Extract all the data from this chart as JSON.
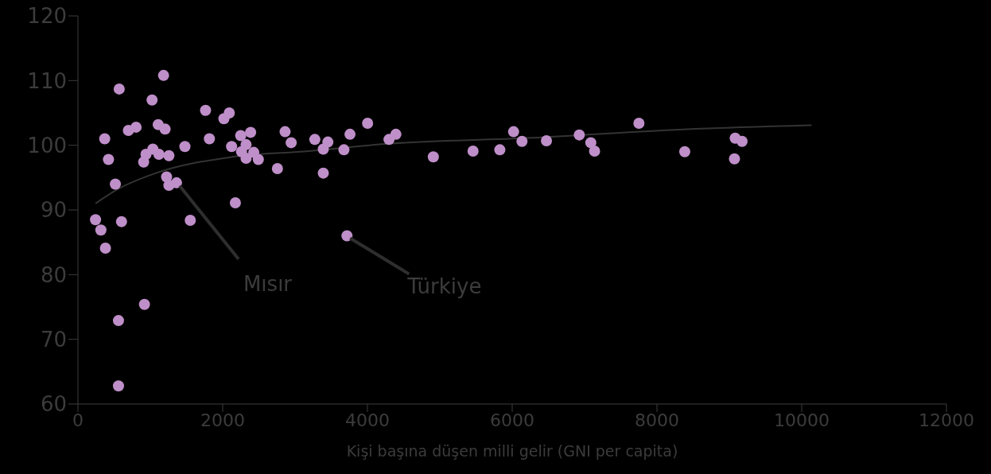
{
  "chart_data": {
    "type": "scatter",
    "xlabel": "Kişi  başına düşen milli gelir (GNI per capita)",
    "xlim": [
      0,
      12000
    ],
    "xticks": [
      0,
      2000,
      4000,
      6000,
      8000,
      10000,
      12000
    ],
    "ylim": [
      60,
      120
    ],
    "yticks": [
      60,
      70,
      80,
      90,
      100,
      110,
      120
    ],
    "grid": false,
    "legend": false,
    "marker": "circle",
    "series": [
      {
        "type": "scatter",
        "color": "#bf8fc9",
        "x": [
          243,
          317,
          380,
          370,
          422,
          517,
          570,
          602,
          560,
          560,
          697,
          803,
          919,
          908,
          940,
          1024,
          1035,
          1109,
          1119,
          1183,
          1204,
          1257,
          1225,
          1257,
          1362,
          1478,
          1552,
          1763,
          1816,
          2017,
          2091,
          2123,
          2175,
          2249,
          2260,
          2323,
          2323,
          2386,
          2429,
          2492,
          2756,
          2862,
          2946,
          3273,
          3390,
          3390,
          3453,
          3675,
          3717,
          3759,
          4002,
          4298,
          4393,
          4910,
          5459,
          5829,
          6019,
          6135,
          6473,
          6927,
          7086,
          7138,
          7751,
          8384,
          9071,
          9081,
          9176
        ],
        "values": [
          88.5,
          86.9,
          84.1,
          101.0,
          97.8,
          94.0,
          108.7,
          88.2,
          72.9,
          62.8,
          102.3,
          102.8,
          75.4,
          97.4,
          98.6,
          107.0,
          99.4,
          103.2,
          98.6,
          110.8,
          102.5,
          98.4,
          95.1,
          93.8,
          94.2,
          99.8,
          88.4,
          105.4,
          101.0,
          104.1,
          105.0,
          99.8,
          91.1,
          101.5,
          99.0,
          100.1,
          98.0,
          102.0,
          98.9,
          97.8,
          96.4,
          102.1,
          100.4,
          100.9,
          99.4,
          95.7,
          100.5,
          99.3,
          86.0,
          101.7,
          103.4,
          100.9,
          101.7,
          98.2,
          99.1,
          99.3,
          102.1,
          100.6,
          100.7,
          101.6,
          100.4,
          99.1,
          103.4,
          99.0,
          97.9,
          101.1,
          100.6
        ]
      },
      {
        "type": "line",
        "color": "#333333",
        "marker": "none",
        "x": [
          243,
          549,
          1077,
          2133,
          3189,
          4245,
          6357,
          8469,
          10137
        ],
        "values": [
          91.0,
          93.2,
          95.7,
          98.2,
          99.1,
          100.2,
          101.2,
          102.5,
          103.1
        ]
      }
    ],
    "annotations": [
      {
        "text": "Mısır",
        "x": 1362,
        "y": 94.2
      },
      {
        "text": "Türkiye",
        "x": 3717,
        "y": 86.0
      }
    ]
  }
}
